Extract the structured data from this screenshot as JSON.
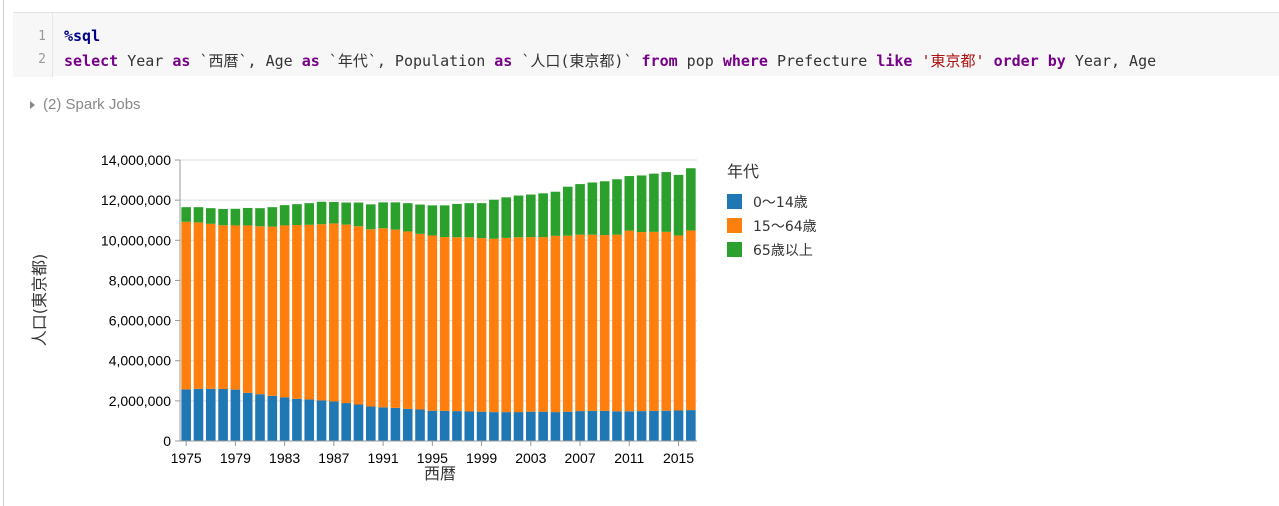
{
  "code": {
    "line_numbers": [
      "1",
      "2"
    ],
    "line1": {
      "magic": "%sql"
    },
    "line2": {
      "t1": "select",
      "t2": " Year ",
      "t3": "as",
      "t4": " `西暦`, Age ",
      "t5": "as",
      "t6": " `年代`, Population ",
      "t7": "as",
      "t8": " `人口(東京都)` ",
      "t9": "from",
      "t10": " pop ",
      "t11": "where",
      "t12": " Prefecture ",
      "t13": "like",
      "t14": " ",
      "t15": "'東京都'",
      "t16": " ",
      "t17": "order by",
      "t18": " Year, Age"
    }
  },
  "spark_jobs": "(2) Spark Jobs",
  "colors": {
    "kids": "#1f77b4",
    "working": "#ff7f0e",
    "elderly": "#2ca02c"
  },
  "chart_data": {
    "type": "bar",
    "stacked": true,
    "xlabel": "西暦",
    "ylabel": "人口(東京都)",
    "ylim": [
      0,
      14000000
    ],
    "y_ticks": [
      "0",
      "2,000,000",
      "4,000,000",
      "6,000,000",
      "8,000,000",
      "10,000,000",
      "12,000,000",
      "14,000,000"
    ],
    "x_tick_labels": [
      "1975",
      "1979",
      "1983",
      "1987",
      "1991",
      "1995",
      "1999",
      "2003",
      "2007",
      "2011",
      "2015"
    ],
    "legend_title": "年代",
    "legend_position": "right",
    "categories": [
      1975,
      1976,
      1977,
      1978,
      1979,
      1980,
      1981,
      1982,
      1983,
      1984,
      1985,
      1986,
      1987,
      1988,
      1989,
      1990,
      1991,
      1992,
      1993,
      1994,
      1995,
      1996,
      1997,
      1998,
      1999,
      2000,
      2001,
      2002,
      2003,
      2004,
      2005,
      2006,
      2007,
      2008,
      2009,
      2010,
      2011,
      2012,
      2013,
      2014,
      2015,
      2016
    ],
    "series": [
      {
        "name": "0〜14歳",
        "values": [
          2570000,
          2600000,
          2600000,
          2590000,
          2560000,
          2400000,
          2330000,
          2250000,
          2170000,
          2100000,
          2070000,
          2020000,
          1970000,
          1890000,
          1820000,
          1720000,
          1680000,
          1650000,
          1600000,
          1570000,
          1510000,
          1500000,
          1490000,
          1470000,
          1460000,
          1440000,
          1440000,
          1440000,
          1460000,
          1460000,
          1440000,
          1460000,
          1490000,
          1500000,
          1500000,
          1480000,
          1480000,
          1490000,
          1500000,
          1510000,
          1520000,
          1540000
        ]
      },
      {
        "name": "15〜64歳",
        "values": [
          8350000,
          8290000,
          8220000,
          8160000,
          8180000,
          8340000,
          8370000,
          8430000,
          8570000,
          8660000,
          8700000,
          8780000,
          8870000,
          8890000,
          8880000,
          8830000,
          8920000,
          8880000,
          8840000,
          8750000,
          8730000,
          8660000,
          8660000,
          8680000,
          8650000,
          8640000,
          8680000,
          8710000,
          8700000,
          8700000,
          8780000,
          8770000,
          8790000,
          8780000,
          8760000,
          8800000,
          9000000,
          8920000,
          8920000,
          8910000,
          8720000,
          8950000
        ]
      },
      {
        "name": "65歳以上",
        "values": [
          730000,
          760000,
          780000,
          810000,
          830000,
          870000,
          900000,
          970000,
          1010000,
          1040000,
          1080000,
          1120000,
          1070000,
          1100000,
          1180000,
          1240000,
          1290000,
          1360000,
          1410000,
          1460000,
          1500000,
          1580000,
          1660000,
          1700000,
          1740000,
          1940000,
          2020000,
          2080000,
          2120000,
          2180000,
          2200000,
          2440000,
          2520000,
          2600000,
          2680000,
          2760000,
          2720000,
          2820000,
          2900000,
          2980000,
          3020000,
          3100000
        ]
      }
    ]
  }
}
